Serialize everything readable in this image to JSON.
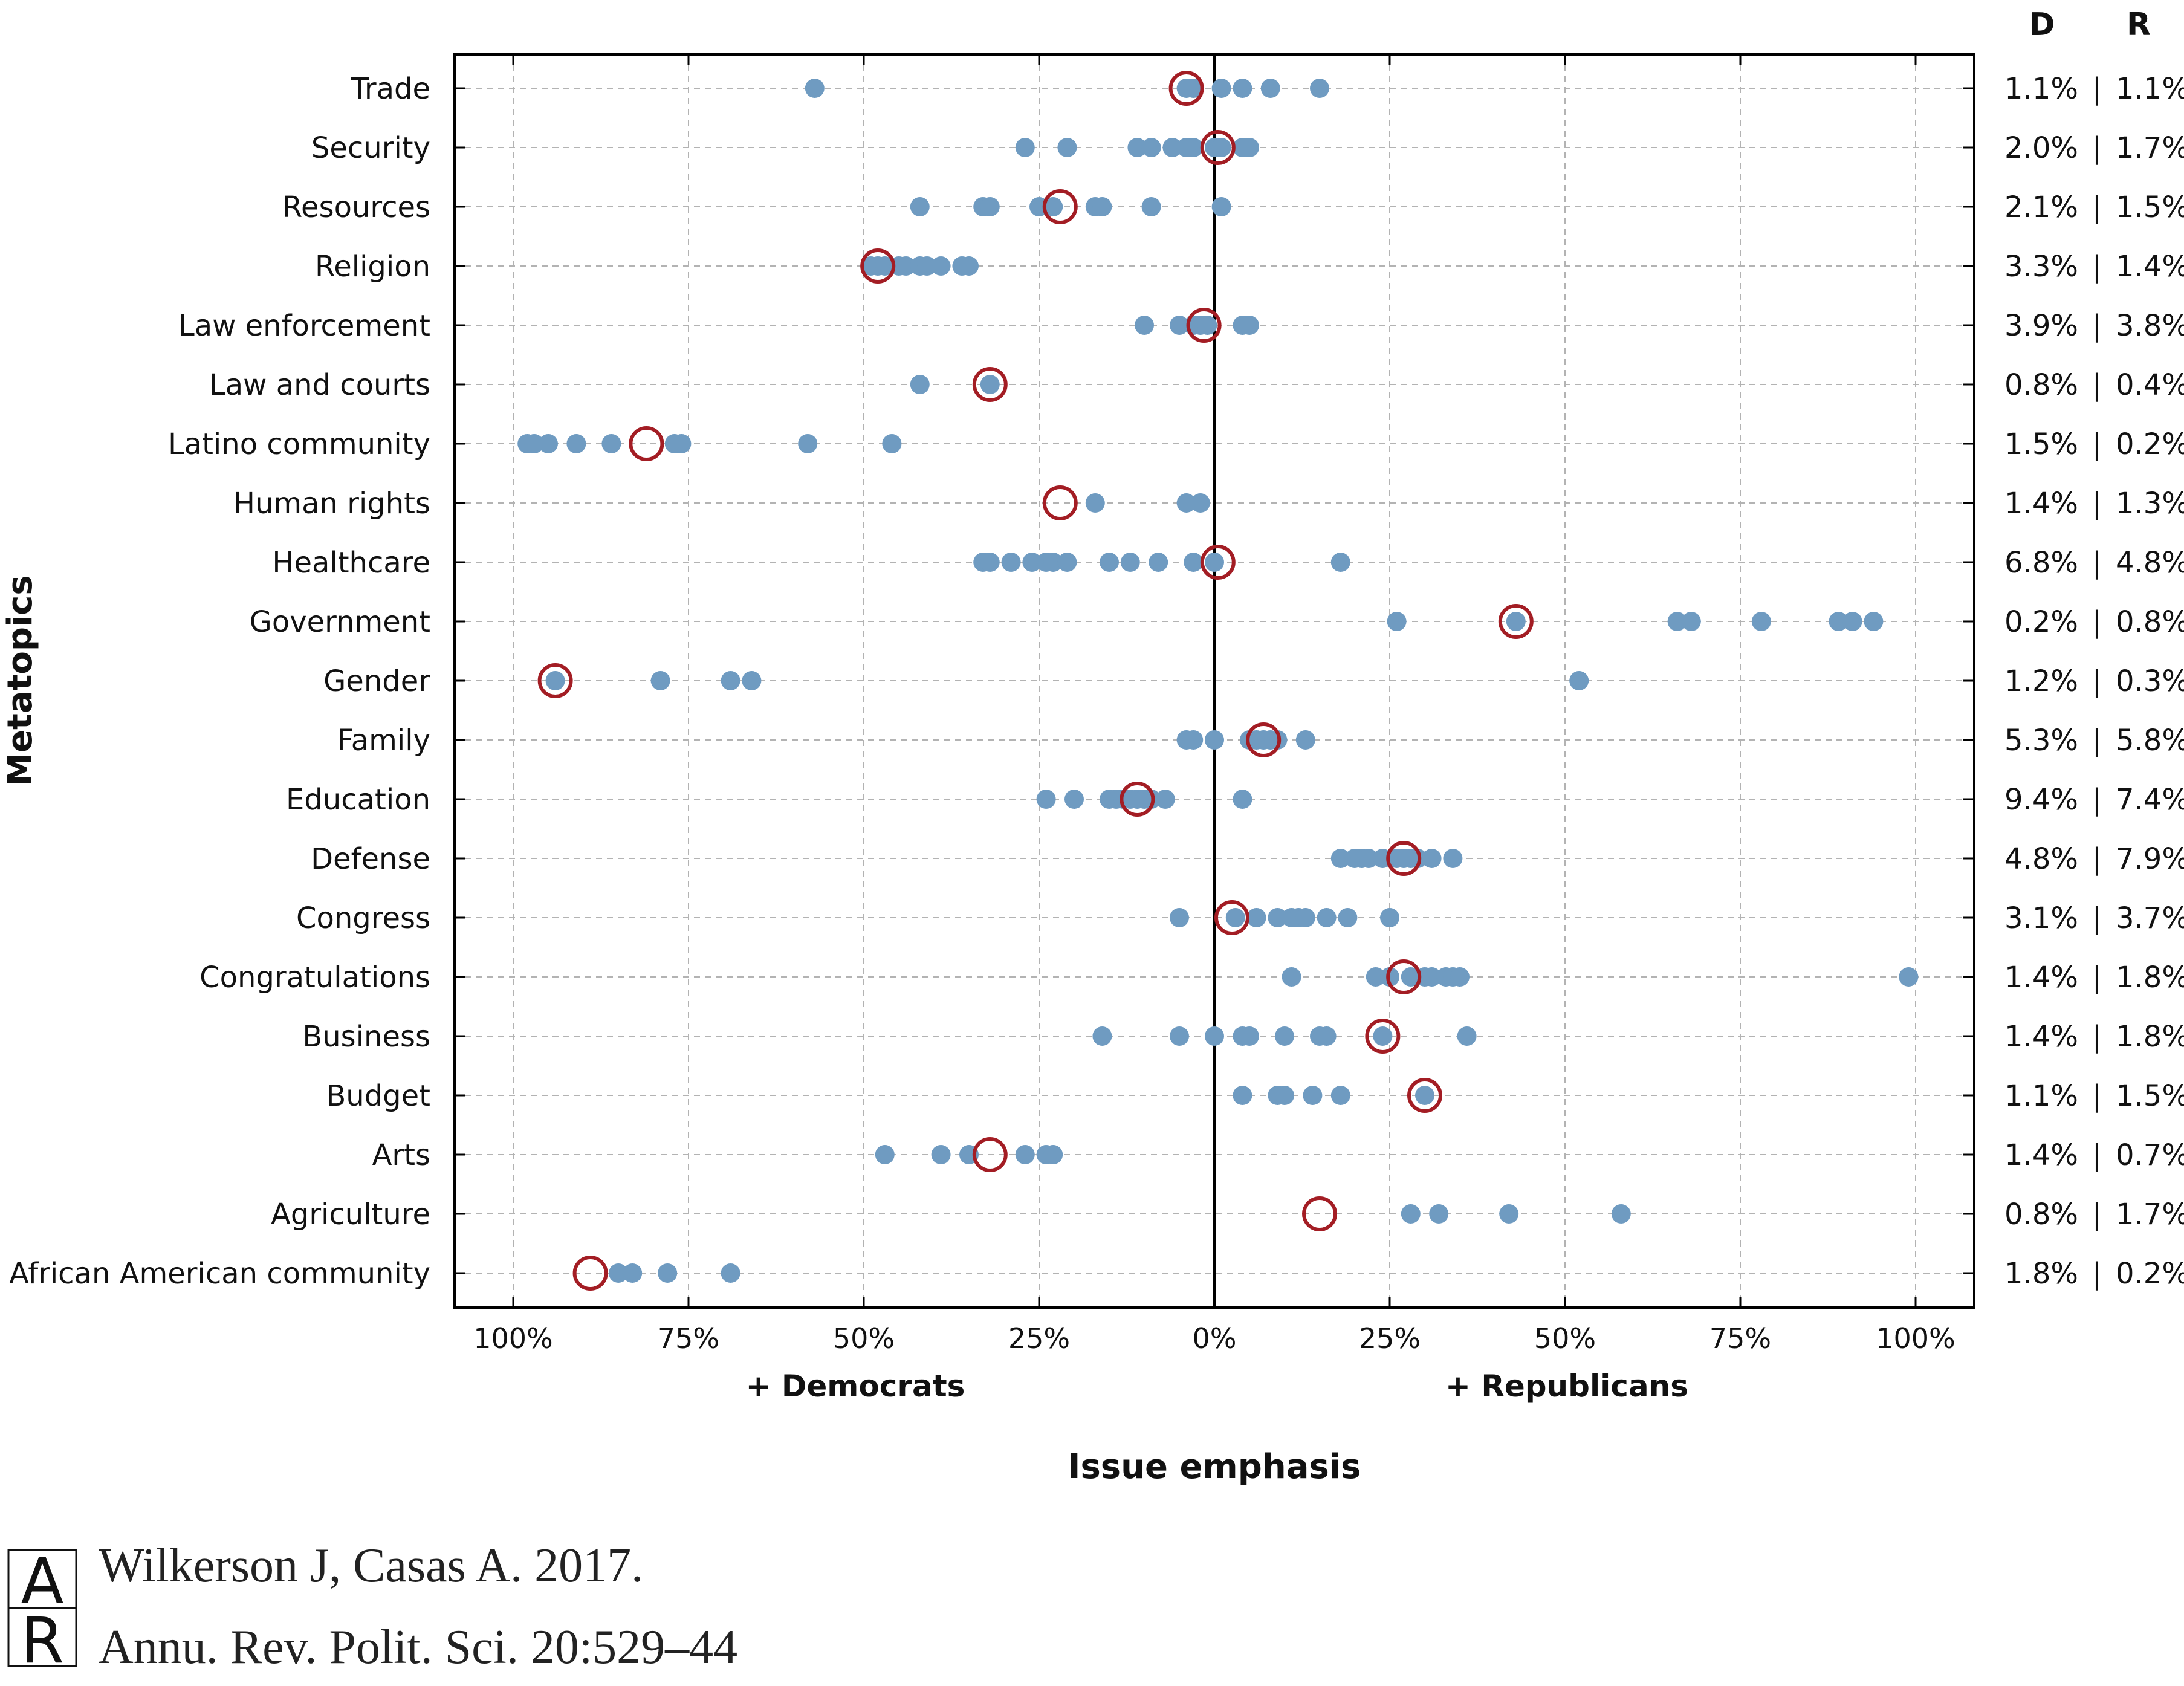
{
  "chart_data": {
    "type": "scatter",
    "ylabel": "Metatopics",
    "xlabel": "Issue emphasis",
    "x_side_labels": {
      "left": "+ Democrats",
      "right": "+ Republicans"
    },
    "xticks": [
      "100%",
      "75%",
      "50%",
      "25%",
      "0%",
      "25%",
      "50%",
      "75%",
      "100%"
    ],
    "xlim": [
      -1.0,
      1.0
    ],
    "grid": true,
    "right_headers": {
      "d": "D",
      "r": "R",
      "sep": "|"
    },
    "colors": {
      "point": "#6f9bc1",
      "circle": "#a31d24",
      "grid": "#b3b3b3",
      "axis": "#000000"
    },
    "topics": [
      {
        "name": "Trade",
        "points": [
          -0.57,
          -0.04,
          -0.03,
          0.01,
          0.04,
          0.08,
          0.15
        ],
        "mean": -0.04,
        "d": "1.1%",
        "r": "1.1%"
      },
      {
        "name": "Security",
        "points": [
          -0.27,
          -0.21,
          -0.11,
          -0.09,
          -0.06,
          -0.04,
          -0.03,
          0.0,
          0.01,
          0.04,
          0.05
        ],
        "mean": 0.005,
        "d": "2.0%",
        "r": "1.7%"
      },
      {
        "name": "Resources",
        "points": [
          -0.42,
          -0.33,
          -0.32,
          -0.25,
          -0.23,
          -0.17,
          -0.16,
          -0.09,
          0.01
        ],
        "mean": -0.22,
        "d": "2.1%",
        "r": "1.5%"
      },
      {
        "name": "Religion",
        "points": [
          -0.49,
          -0.48,
          -0.47,
          -0.45,
          -0.44,
          -0.42,
          -0.41,
          -0.39,
          -0.36,
          -0.35
        ],
        "mean": -0.48,
        "d": "3.3%",
        "r": "1.4%"
      },
      {
        "name": "Law enforcement",
        "points": [
          -0.1,
          -0.05,
          -0.03,
          -0.02,
          -0.01,
          0.04,
          0.05
        ],
        "mean": -0.015,
        "d": "3.9%",
        "r": "3.8%"
      },
      {
        "name": "Law and courts",
        "points": [
          -0.42,
          -0.32
        ],
        "mean": -0.32,
        "d": "0.8%",
        "r": "0.4%"
      },
      {
        "name": "Latino community",
        "points": [
          -0.98,
          -0.97,
          -0.95,
          -0.91,
          -0.86,
          -0.77,
          -0.76,
          -0.58,
          -0.46
        ],
        "mean": -0.81,
        "d": "1.5%",
        "r": "0.2%"
      },
      {
        "name": "Human rights",
        "points": [
          -0.17,
          -0.04,
          -0.02
        ],
        "mean": -0.22,
        "d": "1.4%",
        "r": "1.3%"
      },
      {
        "name": "Healthcare",
        "points": [
          -0.33,
          -0.32,
          -0.29,
          -0.26,
          -0.24,
          -0.23,
          -0.21,
          -0.15,
          -0.12,
          -0.08,
          -0.03,
          0.0,
          0.18
        ],
        "mean": 0.005,
        "d": "6.8%",
        "r": "4.8%"
      },
      {
        "name": "Government",
        "points": [
          0.26,
          0.43,
          0.66,
          0.68,
          0.78,
          0.89,
          0.91,
          0.94
        ],
        "mean": 0.43,
        "d": "0.2%",
        "r": "0.8%"
      },
      {
        "name": "Gender",
        "points": [
          -0.94,
          -0.79,
          -0.69,
          -0.66,
          0.52
        ],
        "mean": -0.94,
        "d": "1.2%",
        "r": "0.3%"
      },
      {
        "name": "Family",
        "points": [
          -0.04,
          -0.03,
          0.0,
          0.05,
          0.06,
          0.07,
          0.08,
          0.09,
          0.13
        ],
        "mean": 0.07,
        "d": "5.3%",
        "r": "5.8%"
      },
      {
        "name": "Education",
        "points": [
          -0.24,
          -0.2,
          -0.15,
          -0.14,
          -0.13,
          -0.12,
          -0.11,
          -0.1,
          -0.09,
          -0.07,
          0.04
        ],
        "mean": -0.11,
        "d": "9.4%",
        "r": "7.4%"
      },
      {
        "name": "Defense",
        "points": [
          0.18,
          0.2,
          0.21,
          0.22,
          0.24,
          0.26,
          0.27,
          0.28,
          0.29,
          0.31,
          0.34
        ],
        "mean": 0.27,
        "d": "4.8%",
        "r": "7.9%"
      },
      {
        "name": "Congress",
        "points": [
          -0.05,
          0.03,
          0.06,
          0.09,
          0.11,
          0.12,
          0.13,
          0.16,
          0.19,
          0.25
        ],
        "mean": 0.025,
        "d": "3.1%",
        "r": "3.7%"
      },
      {
        "name": "Congratulations",
        "points": [
          0.11,
          0.23,
          0.25,
          0.28,
          0.3,
          0.31,
          0.33,
          0.34,
          0.35,
          0.99
        ],
        "mean": 0.27,
        "d": "1.4%",
        "r": "1.8%"
      },
      {
        "name": "Business",
        "points": [
          -0.16,
          -0.05,
          0.0,
          0.04,
          0.05,
          0.1,
          0.15,
          0.16,
          0.24,
          0.36
        ],
        "mean": 0.24,
        "d": "1.4%",
        "r": "1.8%"
      },
      {
        "name": "Budget",
        "points": [
          0.04,
          0.09,
          0.1,
          0.14,
          0.18,
          0.3
        ],
        "mean": 0.3,
        "d": "1.1%",
        "r": "1.5%"
      },
      {
        "name": "Arts",
        "points": [
          -0.47,
          -0.39,
          -0.35,
          -0.27,
          -0.24,
          -0.23
        ],
        "mean": -0.32,
        "d": "1.4%",
        "r": "0.7%"
      },
      {
        "name": "Agriculture",
        "points": [
          0.28,
          0.32,
          0.42,
          0.58
        ],
        "mean": 0.15,
        "d": "0.8%",
        "r": "1.7%"
      },
      {
        "name": "African American community",
        "points": [
          -0.85,
          -0.83,
          -0.78,
          -0.69
        ],
        "mean": -0.89,
        "d": "1.8%",
        "r": "0.2%"
      }
    ]
  },
  "citation": {
    "line1": "Wilkerson J, Casas A. 2017.",
    "line2": "Annu. Rev. Polit. Sci. 20:529–44"
  },
  "logo": {
    "icon": "annual-reviews-logo",
    "letters": "AR"
  }
}
